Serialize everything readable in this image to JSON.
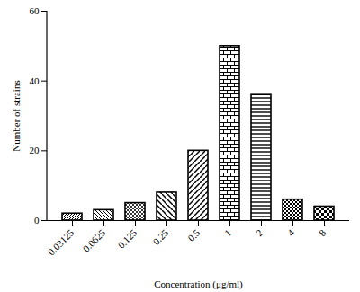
{
  "chart_data": {
    "type": "bar",
    "x_label": "Concentration (μg/ml)",
    "y_label": "Number of strains",
    "categories": [
      "0.03125",
      "0.0625",
      "0.125",
      "0.25",
      "0.5",
      "1",
      "2",
      "4",
      "8"
    ],
    "values": [
      2,
      3,
      5,
      8,
      20,
      50,
      36,
      6,
      4
    ],
    "color": "#000000",
    "ylim": [
      0,
      60
    ],
    "yticks": [
      0,
      20,
      40,
      60
    ],
    "grid": false
  }
}
